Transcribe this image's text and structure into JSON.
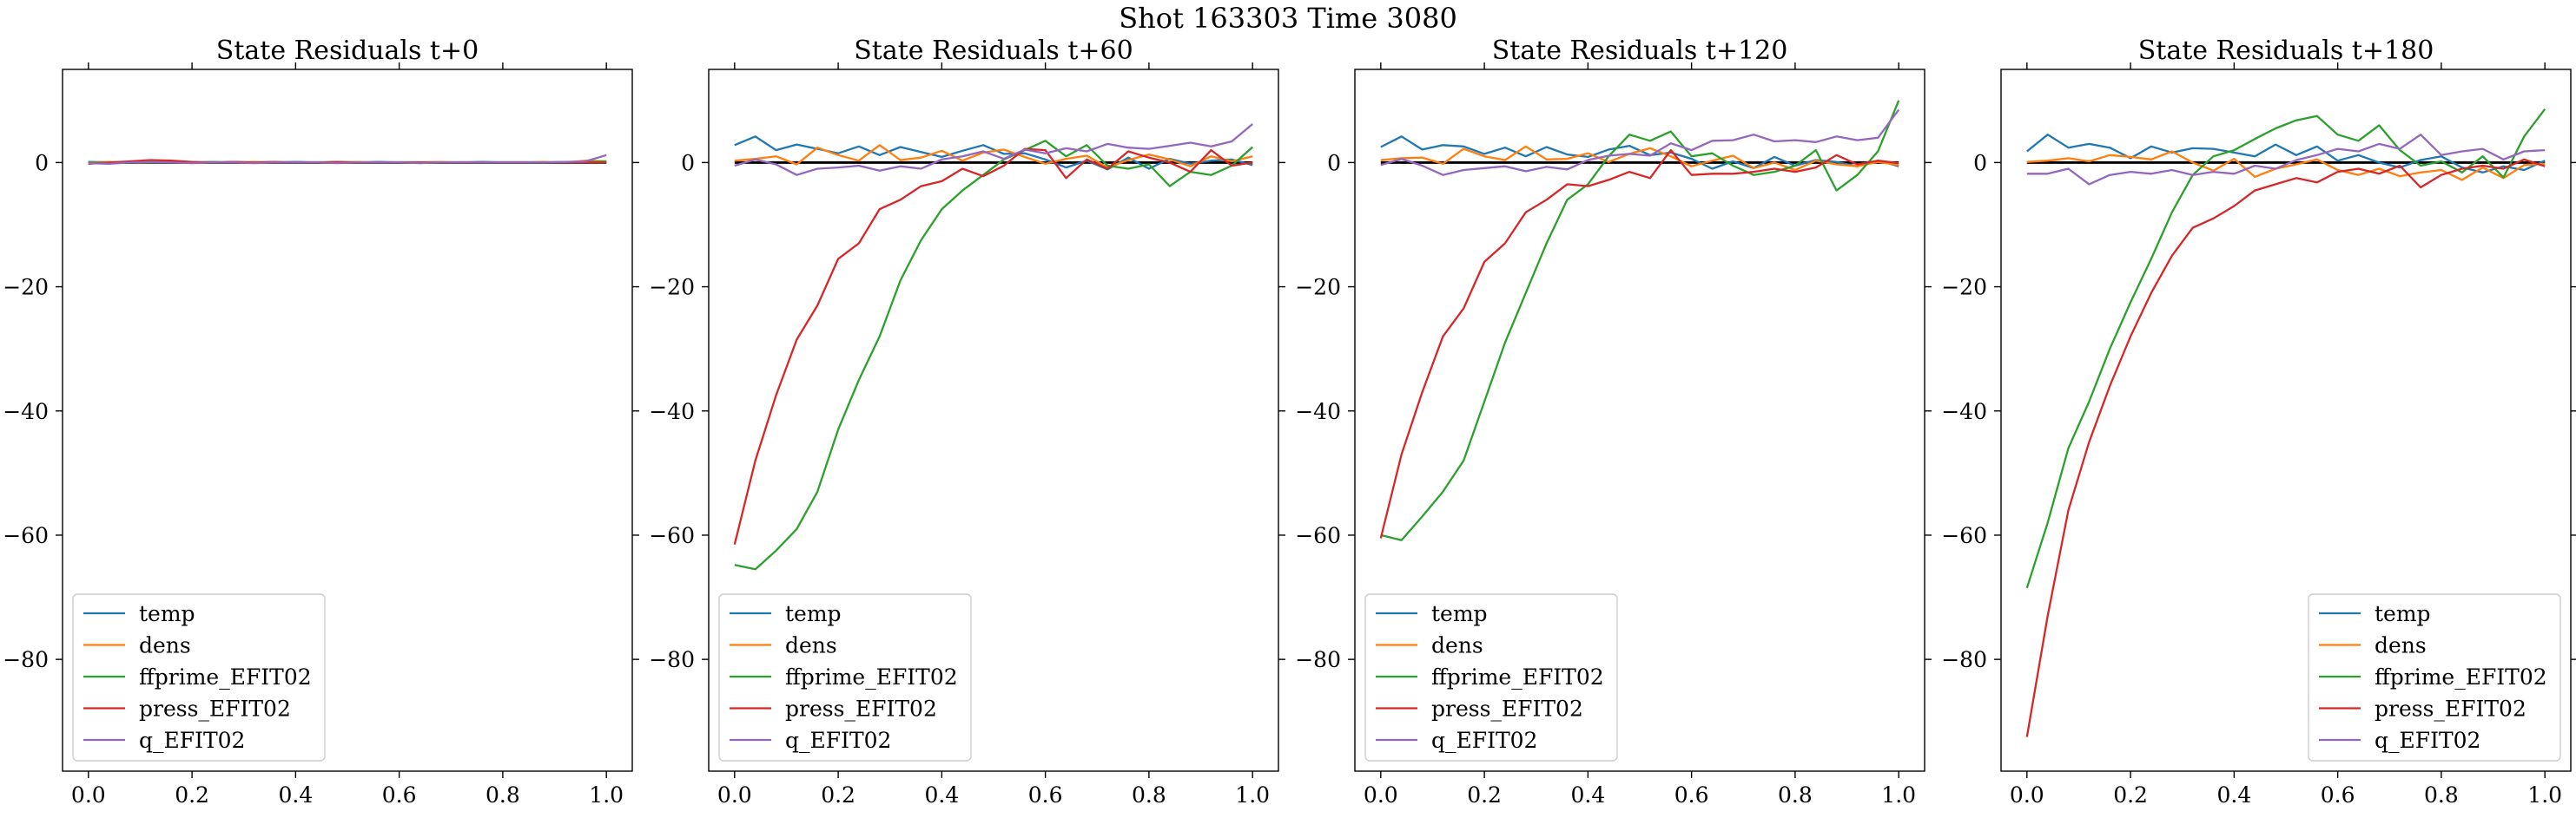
{
  "figure": {
    "suptitle": "Shot 163303   Time 3080"
  },
  "colors": {
    "temp": "#1f77b4",
    "dens": "#ff7f0e",
    "ffprime_EFIT02": "#2ca02c",
    "press_EFIT02": "#d62728",
    "q_EFIT02": "#9467bd",
    "zero_line": "#000000"
  },
  "chart_data": [
    {
      "type": "line",
      "title": "State Residuals t+0",
      "xlabel": "",
      "ylabel": "",
      "xlim": [
        -0.05,
        1.05
      ],
      "ylim": [
        -98,
        15
      ],
      "xticks": [
        "0.0",
        "0.2",
        "0.4",
        "0.6",
        "0.8",
        "1.0"
      ],
      "yticks": [
        "0",
        "−20",
        "−40",
        "−60",
        "−80"
      ],
      "legend_position": "lower-left",
      "grid": false,
      "x": [
        0.0,
        0.04,
        0.08,
        0.12,
        0.16,
        0.2,
        0.24,
        0.28,
        0.32,
        0.36,
        0.4,
        0.44,
        0.48,
        0.52,
        0.56,
        0.6,
        0.64,
        0.68,
        0.72,
        0.76,
        0.8,
        0.84,
        0.88,
        0.92,
        0.96,
        1.0
      ],
      "series": [
        {
          "name": "temp",
          "values": [
            0.1,
            0.0,
            0.1,
            0.0,
            0.1,
            0.0,
            0.0,
            0.1,
            0.0,
            0.0,
            0.1,
            0.0,
            0.0,
            0.0,
            0.1,
            0.0,
            0.0,
            0.0,
            0.0,
            0.1,
            0.0,
            0.0,
            0.0,
            0.1,
            0.0,
            0.1
          ]
        },
        {
          "name": "dens",
          "values": [
            0.0,
            0.1,
            0.0,
            0.0,
            0.1,
            0.0,
            0.0,
            0.0,
            0.1,
            0.0,
            0.0,
            0.0,
            0.0,
            0.1,
            0.0,
            0.0,
            0.0,
            0.1,
            0.0,
            0.0,
            0.0,
            0.0,
            0.1,
            0.0,
            0.3,
            0.2
          ]
        },
        {
          "name": "ffprime_EFIT02",
          "values": [
            0.0,
            0.0,
            0.1,
            0.0,
            0.0,
            0.0,
            0.1,
            0.0,
            0.0,
            0.0,
            0.0,
            0.0,
            0.1,
            0.0,
            0.0,
            0.0,
            0.0,
            0.0,
            0.0,
            0.0,
            0.0,
            0.0,
            0.0,
            0.0,
            0.1,
            0.2
          ]
        },
        {
          "name": "press_EFIT02",
          "values": [
            -0.2,
            0.0,
            0.2,
            0.4,
            0.3,
            0.1,
            0.0,
            0.1,
            0.0,
            0.1,
            0.0,
            0.0,
            0.1,
            0.0,
            0.0,
            0.0,
            0.0,
            0.0,
            0.0,
            0.0,
            0.0,
            0.0,
            0.0,
            0.0,
            0.0,
            0.0
          ]
        },
        {
          "name": "q_EFIT02",
          "values": [
            -0.1,
            -0.2,
            0.0,
            0.1,
            0.0,
            -0.1,
            0.0,
            0.0,
            -0.1,
            0.0,
            0.0,
            0.0,
            -0.1,
            0.0,
            0.0,
            0.0,
            -0.1,
            0.0,
            0.0,
            0.0,
            0.0,
            0.0,
            0.0,
            0.1,
            0.2,
            1.2
          ]
        }
      ]
    },
    {
      "type": "line",
      "title": "State Residuals t+60",
      "xlabel": "",
      "ylabel": "",
      "xlim": [
        -0.05,
        1.05
      ],
      "ylim": [
        -98,
        15
      ],
      "xticks": [
        "0.0",
        "0.2",
        "0.4",
        "0.6",
        "0.8",
        "1.0"
      ],
      "yticks": [
        "0",
        "−20",
        "−40",
        "−60",
        "−80"
      ],
      "legend_position": "lower-left",
      "grid": false,
      "x": [
        0.0,
        0.04,
        0.08,
        0.12,
        0.16,
        0.2,
        0.24,
        0.28,
        0.32,
        0.36,
        0.4,
        0.44,
        0.48,
        0.52,
        0.56,
        0.6,
        0.64,
        0.68,
        0.72,
        0.76,
        0.8,
        0.84,
        0.88,
        0.92,
        0.96,
        1.0
      ],
      "series": [
        {
          "name": "temp",
          "values": [
            2.8,
            4.2,
            2.0,
            2.9,
            2.2,
            1.5,
            2.6,
            1.2,
            2.5,
            1.7,
            0.9,
            1.9,
            2.8,
            1.4,
            1.5,
            0.5,
            -0.8,
            0.3,
            -1.1,
            0.8,
            -1.0,
            0.6,
            -0.2,
            0.3,
            0.5,
            -0.4
          ]
        },
        {
          "name": "dens",
          "values": [
            0.3,
            0.6,
            1.0,
            -0.3,
            2.4,
            1.2,
            0.3,
            2.8,
            0.4,
            0.8,
            1.9,
            0.3,
            1.6,
            2.1,
            0.9,
            -0.2,
            0.6,
            1.1,
            -0.8,
            0.4,
            1.3,
            0.5,
            -0.6,
            1.0,
            0.2,
            1.0
          ]
        },
        {
          "name": "ffprime_EFIT02",
          "values": [
            -64.8,
            -65.5,
            -62.5,
            -59.0,
            -53.0,
            -43.0,
            -35.0,
            -28.0,
            -19.0,
            -12.5,
            -7.5,
            -4.5,
            -2.0,
            0.5,
            2.0,
            3.5,
            1.0,
            2.8,
            -0.5,
            -1.0,
            -0.3,
            -3.8,
            -1.5,
            -2.0,
            -0.5,
            2.5
          ]
        },
        {
          "name": "press_EFIT02",
          "values": [
            -61.5,
            -48.0,
            -37.5,
            -28.5,
            -23.0,
            -15.5,
            -13.0,
            -7.5,
            -6.0,
            -3.8,
            -3.0,
            -1.0,
            -2.2,
            -0.5,
            2.2,
            2.0,
            -2.5,
            0.5,
            -1.0,
            1.8,
            0.8,
            0.0,
            -1.5,
            2.0,
            -0.5,
            0.0
          ]
        },
        {
          "name": "q_EFIT02",
          "values": [
            -0.5,
            0.5,
            -0.3,
            -2.0,
            -1.0,
            -0.8,
            -0.5,
            -1.3,
            -0.6,
            -1.0,
            0.5,
            1.0,
            1.8,
            0.6,
            2.1,
            1.5,
            2.3,
            1.8,
            3.0,
            2.4,
            2.2,
            2.7,
            3.2,
            2.6,
            3.4,
            6.2
          ]
        }
      ]
    },
    {
      "type": "line",
      "title": "State Residuals t+120",
      "xlabel": "",
      "ylabel": "",
      "xlim": [
        -0.05,
        1.05
      ],
      "ylim": [
        -98,
        15
      ],
      "xticks": [
        "0.0",
        "0.2",
        "0.4",
        "0.6",
        "0.8",
        "1.0"
      ],
      "yticks": [
        "0",
        "−20",
        "−40",
        "−60",
        "−80"
      ],
      "legend_position": "lower-left",
      "grid": false,
      "x": [
        0.0,
        0.04,
        0.08,
        0.12,
        0.16,
        0.2,
        0.24,
        0.28,
        0.32,
        0.36,
        0.4,
        0.44,
        0.48,
        0.52,
        0.56,
        0.6,
        0.64,
        0.68,
        0.72,
        0.76,
        0.8,
        0.84,
        0.88,
        0.92,
        0.96,
        1.0
      ],
      "series": [
        {
          "name": "temp",
          "values": [
            2.5,
            4.2,
            2.1,
            2.8,
            2.6,
            1.4,
            2.4,
            1.0,
            2.5,
            1.3,
            0.9,
            2.1,
            2.7,
            1.2,
            1.6,
            0.6,
            -1.0,
            0.2,
            -0.9,
            0.9,
            -0.5,
            0.4,
            0.1,
            -0.6,
            0.3,
            -0.6
          ]
        },
        {
          "name": "dens",
          "values": [
            0.4,
            0.7,
            0.8,
            -0.2,
            2.2,
            1.0,
            0.4,
            2.6,
            0.5,
            0.6,
            1.5,
            0.1,
            1.4,
            2.3,
            1.0,
            -0.6,
            0.3,
            1.1,
            -0.9,
            0.0,
            -1.2,
            0.3,
            -0.3,
            -0.6,
            0.1,
            -0.4
          ]
        },
        {
          "name": "ffprime_EFIT02",
          "values": [
            -60.0,
            -60.8,
            -57.0,
            -53.0,
            -48.0,
            -38.5,
            -29.0,
            -21.0,
            -13.0,
            -6.0,
            -3.5,
            1.0,
            4.5,
            3.5,
            5.0,
            1.0,
            1.5,
            -0.5,
            -2.0,
            -1.5,
            -0.5,
            2.0,
            -4.5,
            -2.0,
            1.8,
            10.0
          ]
        },
        {
          "name": "press_EFIT02",
          "values": [
            -60.5,
            -47.0,
            -37.0,
            -28.0,
            -23.5,
            -16.0,
            -13.0,
            -8.0,
            -6.0,
            -3.5,
            -3.8,
            -2.8,
            -1.5,
            -2.5,
            2.0,
            -2.0,
            -1.8,
            -1.8,
            -1.5,
            -1.0,
            -1.5,
            -0.8,
            1.2,
            -0.3,
            0.3,
            -0.1
          ]
        },
        {
          "name": "q_EFIT02",
          "values": [
            -0.4,
            0.6,
            -0.5,
            -2.0,
            -1.2,
            -0.9,
            -0.6,
            -1.4,
            -0.7,
            -1.1,
            0.4,
            1.1,
            1.4,
            1.1,
            3.1,
            2.0,
            3.5,
            3.6,
            4.5,
            3.4,
            3.6,
            3.3,
            4.2,
            3.6,
            4.0,
            8.5
          ]
        }
      ]
    },
    {
      "type": "line",
      "title": "State Residuals t+180",
      "xlabel": "",
      "ylabel": "",
      "xlim": [
        -0.05,
        1.05
      ],
      "ylim": [
        -98,
        15
      ],
      "xticks": [
        "0.0",
        "0.2",
        "0.4",
        "0.6",
        "0.8",
        "1.0"
      ],
      "yticks": [
        "0",
        "−20",
        "−40",
        "−60",
        "−80"
      ],
      "legend_position": "lower-right",
      "grid": false,
      "x": [
        0.0,
        0.04,
        0.08,
        0.12,
        0.16,
        0.2,
        0.24,
        0.28,
        0.32,
        0.36,
        0.4,
        0.44,
        0.48,
        0.52,
        0.56,
        0.6,
        0.64,
        0.68,
        0.72,
        0.76,
        0.8,
        0.84,
        0.88,
        0.92,
        0.96,
        1.0
      ],
      "series": [
        {
          "name": "temp",
          "values": [
            1.8,
            4.5,
            2.4,
            3.0,
            2.4,
            0.7,
            2.6,
            1.6,
            2.3,
            2.2,
            1.6,
            1.0,
            2.9,
            1.2,
            2.6,
            0.3,
            1.2,
            0.0,
            -0.8,
            0.4,
            1.0,
            -0.8,
            -1.6,
            -0.6,
            -1.2,
            0.3
          ]
        },
        {
          "name": "dens",
          "values": [
            0.1,
            0.3,
            0.7,
            0.2,
            1.2,
            0.9,
            0.5,
            1.8,
            0.0,
            -1.3,
            0.6,
            -2.3,
            -1.0,
            -0.3,
            0.5,
            -1.2,
            -2.0,
            -1.0,
            -2.2,
            -1.6,
            -1.2,
            -2.8,
            -0.8,
            -2.5,
            -0.4,
            -0.2
          ]
        },
        {
          "name": "ffprime_EFIT02",
          "values": [
            -68.5,
            -58.0,
            -46.0,
            -38.5,
            -30.0,
            -22.5,
            -15.5,
            -8.0,
            -2.0,
            1.0,
            2.0,
            3.8,
            5.5,
            6.8,
            7.5,
            4.5,
            3.5,
            6.0,
            2.0,
            -0.5,
            0.2,
            -1.6,
            1.0,
            -2.4,
            4.2,
            8.6
          ]
        },
        {
          "name": "press_EFIT02",
          "values": [
            -92.5,
            -73.0,
            -56.0,
            -45.0,
            -36.0,
            -28.0,
            -21.0,
            -15.0,
            -10.5,
            -9.0,
            -7.0,
            -4.5,
            -3.5,
            -2.5,
            -3.2,
            -1.5,
            -1.0,
            -1.8,
            -0.5,
            -4.0,
            -2.0,
            -1.0,
            -0.5,
            -1.0,
            0.5,
            -0.6
          ]
        },
        {
          "name": "q_EFIT02",
          "values": [
            -1.8,
            -1.8,
            -1.0,
            -3.5,
            -2.0,
            -1.5,
            -1.8,
            -1.2,
            -2.0,
            -1.5,
            -1.8,
            -0.5,
            -1.0,
            0.4,
            1.2,
            2.2,
            1.8,
            3.0,
            2.2,
            4.5,
            1.2,
            1.8,
            2.2,
            0.5,
            1.8,
            2.0
          ]
        }
      ]
    }
  ]
}
